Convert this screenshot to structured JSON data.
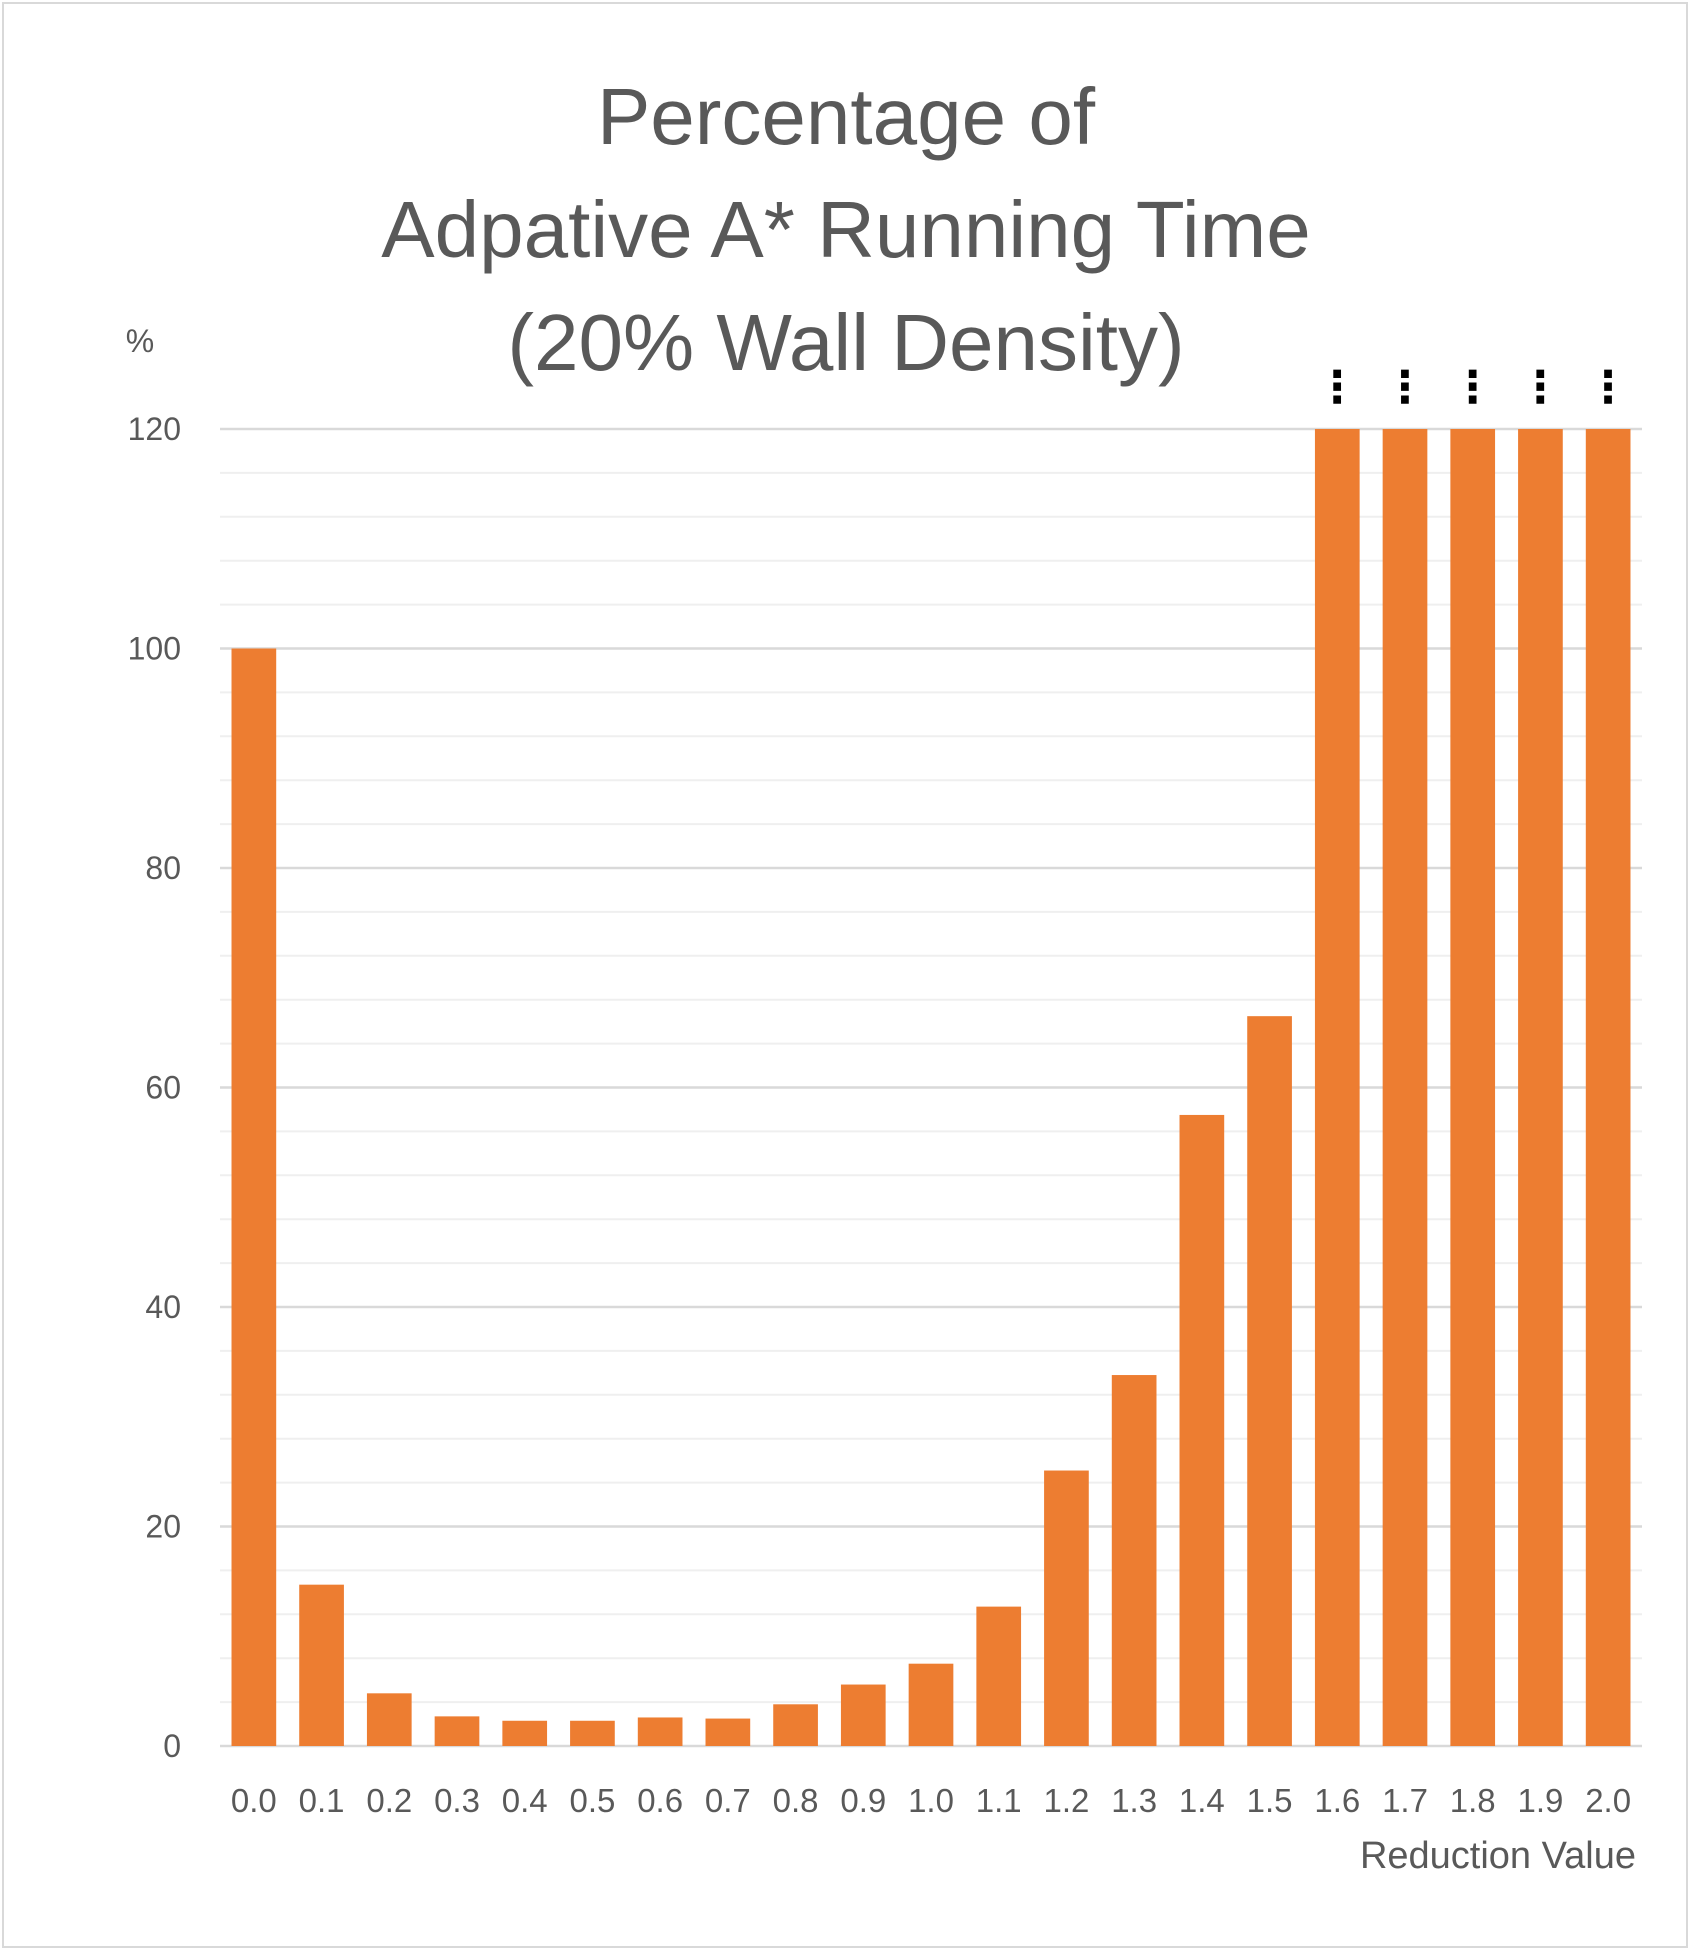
{
  "chart_data": {
    "type": "bar",
    "title_lines": [
      "Percentage of",
      "Adpative A* Running Time",
      "(20% Wall Density)"
    ],
    "xlabel": "Reduction Value",
    "ylabel": "%",
    "ylim": [
      0,
      120
    ],
    "yticks": [
      0,
      20,
      40,
      60,
      80,
      100,
      120
    ],
    "grid": true,
    "minor_grid": true,
    "legend": "none",
    "categories": [
      "0.0",
      "0.1",
      "0.2",
      "0.3",
      "0.4",
      "0.5",
      "0.6",
      "0.7",
      "0.8",
      "0.9",
      "1.0",
      "1.1",
      "1.2",
      "1.3",
      "1.4",
      "1.5",
      "1.6",
      "1.7",
      "1.8",
      "1.9",
      "2.0"
    ],
    "values": [
      100,
      14.7,
      4.8,
      2.7,
      2.3,
      2.3,
      2.6,
      2.5,
      3.8,
      5.6,
      7.5,
      12.7,
      25.1,
      33.8,
      57.5,
      66.5,
      120,
      120,
      120,
      120,
      120
    ],
    "truncated_above_max": [
      "1.6",
      "1.7",
      "1.8",
      "1.9",
      "2.0"
    ],
    "truncation_marker": "⋮",
    "colors": {
      "bar": "#ED7D31",
      "text": "#595959",
      "major_grid": "#d9d9d9",
      "minor_grid": "#efefef",
      "frame": "#d9d9d9"
    }
  }
}
